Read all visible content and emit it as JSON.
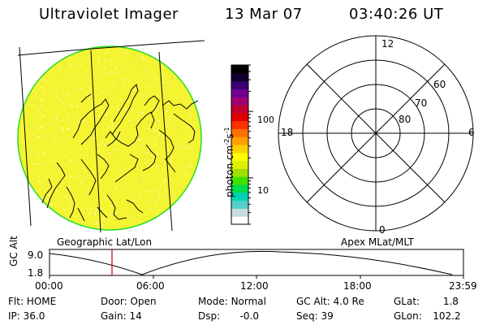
{
  "header": {
    "instrument": "Ultraviolet Imager",
    "date": "13 Mar 07",
    "time": "03:40:26 UT"
  },
  "left_panel": {
    "caption": "Geographic Lat/Lon",
    "image_color": "#f4f432",
    "limb_color": "#22dd22"
  },
  "colorbar": {
    "unit_text": "photon cm",
    "unit_exp1": "-2",
    "unit_mid": "s",
    "unit_exp2": "-1",
    "tick_labels": [
      "100",
      "10"
    ],
    "tick_values": [
      100,
      10
    ],
    "range": [
      2,
      500
    ],
    "colors": [
      "#ffffff",
      "#c8dcdc",
      "#50d0c8",
      "#00d4b4",
      "#00dc50",
      "#40e000",
      "#a0e000",
      "#dcf000",
      "#ffff00",
      "#ffd000",
      "#ffa000",
      "#ff7000",
      "#ff3000",
      "#e00000",
      "#c00030",
      "#a00070",
      "#700090",
      "#3a0070",
      "#100030",
      "#000000"
    ]
  },
  "right_panel": {
    "caption": "Apex MLat/MLT",
    "mlt_labels": {
      "top": "12",
      "bottom": "0",
      "left": "18",
      "right": "6"
    },
    "lat_labels": [
      "60",
      "70",
      "80"
    ]
  },
  "altitude_strip": {
    "ylabel": "GC Alt",
    "y_ticks": [
      "9.0",
      "1.8"
    ],
    "x_ticks": [
      "00:00",
      "06:00",
      "12:00",
      "18:00",
      "23:59"
    ],
    "current_time_color": "#cc0000"
  },
  "info": {
    "flt_label": "Flt:",
    "flt_value": "HOME",
    "door_label": "Door:",
    "door_value": "Open",
    "mode_label": "Mode:",
    "mode_value": "Normal",
    "gcalt_label": "GC Alt:",
    "gcalt_value": "4.0 Re",
    "glat_label": "GLat:",
    "glat_value": "1.8",
    "ip_label": "IP:",
    "ip_value": "36.0",
    "gain_label": "Gain:",
    "gain_value": "14",
    "dsp_label": "Dsp:",
    "dsp_value": "-0.0",
    "seq_label": "Seq:",
    "seq_value": "39",
    "glon_label": "GLon:",
    "glon_value": "102.2"
  }
}
